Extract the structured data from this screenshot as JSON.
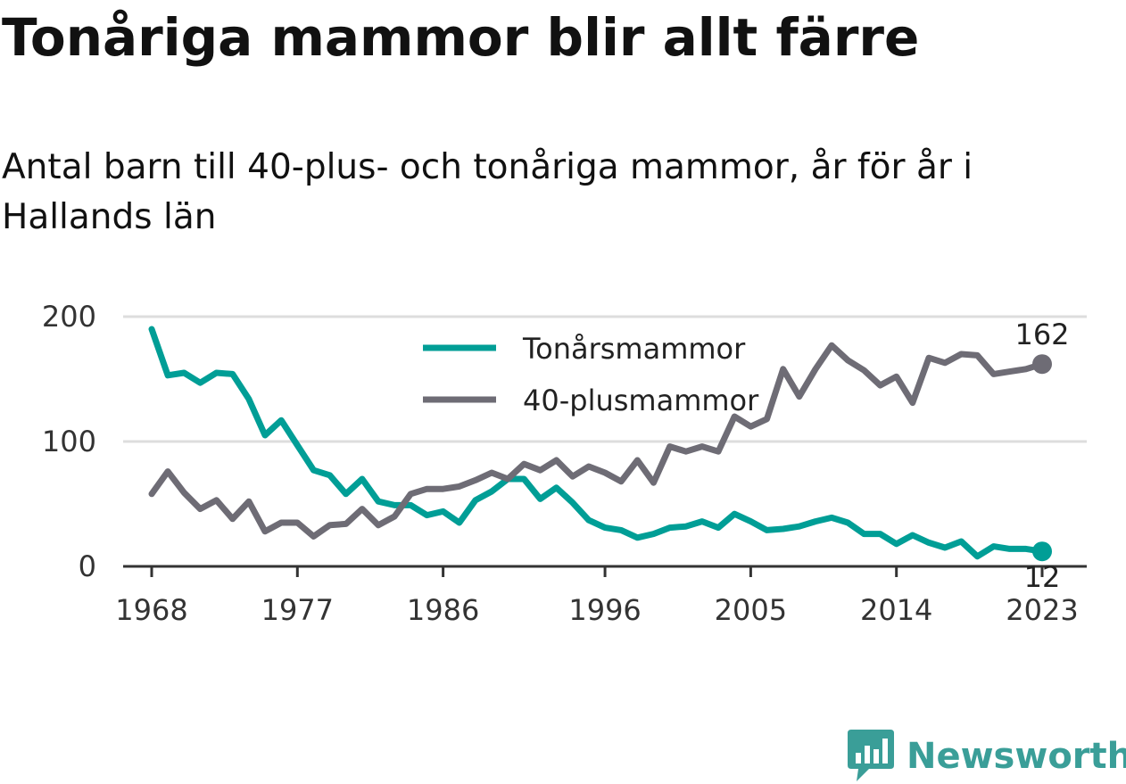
{
  "header": {
    "title": "Tonåriga mammor blir allt färre",
    "subtitle": "Antal barn till 40-plus- och tonåriga mammor, år för år i Hallands län"
  },
  "brand": {
    "name": "Newsworthy",
    "icon": "bar-chart-logo-icon"
  },
  "colors": {
    "teen": "#009e96",
    "forty_plus": "#6e6c75",
    "grid": "#dddddd",
    "axis": "#333333"
  },
  "chart_data": {
    "type": "line",
    "title": "Tonåriga mammor blir allt färre",
    "subtitle": "Antal barn till 40-plus- och tonåriga mammor, år för år i Hallands län",
    "xlabel": "",
    "ylabel": "",
    "xlim": [
      1968,
      2023
    ],
    "ylim": [
      0,
      200
    ],
    "x_ticks": [
      "1968",
      "1977",
      "1986",
      "1996",
      "2005",
      "2014",
      "2023"
    ],
    "y_ticks": [
      "0",
      "100",
      "200"
    ],
    "grid": true,
    "legend_position": "top-center",
    "x": [
      1968,
      1969,
      1970,
      1971,
      1972,
      1973,
      1974,
      1975,
      1976,
      1977,
      1978,
      1979,
      1980,
      1981,
      1982,
      1983,
      1984,
      1985,
      1986,
      1987,
      1988,
      1989,
      1990,
      1991,
      1992,
      1993,
      1994,
      1995,
      1996,
      1997,
      1998,
      1999,
      2000,
      2001,
      2002,
      2003,
      2004,
      2005,
      2006,
      2007,
      2008,
      2009,
      2010,
      2011,
      2012,
      2013,
      2014,
      2015,
      2016,
      2017,
      2018,
      2019,
      2020,
      2021,
      2022,
      2023
    ],
    "series": [
      {
        "name": "Tonårsmammor",
        "color": "#009e96",
        "values": [
          190,
          153,
          155,
          147,
          155,
          154,
          134,
          105,
          117,
          97,
          77,
          73,
          58,
          70,
          52,
          49,
          49,
          41,
          44,
          35,
          53,
          60,
          70,
          70,
          54,
          63,
          51,
          37,
          31,
          29,
          23,
          26,
          31,
          32,
          36,
          31,
          42,
          36,
          29,
          30,
          32,
          36,
          39,
          35,
          26,
          26,
          18,
          25,
          19,
          15,
          20,
          8,
          16,
          14,
          14,
          12
        ]
      },
      {
        "name": "40-plusmammor",
        "color": "#6e6c75",
        "values": [
          58,
          76,
          59,
          46,
          53,
          38,
          52,
          28,
          35,
          35,
          24,
          33,
          34,
          46,
          33,
          40,
          58,
          62,
          62,
          64,
          69,
          75,
          70,
          82,
          77,
          85,
          72,
          80,
          75,
          68,
          85,
          67,
          96,
          92,
          96,
          92,
          120,
          112,
          118,
          158,
          136,
          158,
          177,
          165,
          157,
          145,
          152,
          131,
          167,
          163,
          170,
          169,
          154,
          156,
          158,
          162
        ]
      }
    ],
    "end_labels": [
      {
        "series": "40-plusmammor",
        "x": 2023,
        "value": "162"
      },
      {
        "series": "Tonårsmammor",
        "x": 2023,
        "value": "12"
      }
    ]
  }
}
